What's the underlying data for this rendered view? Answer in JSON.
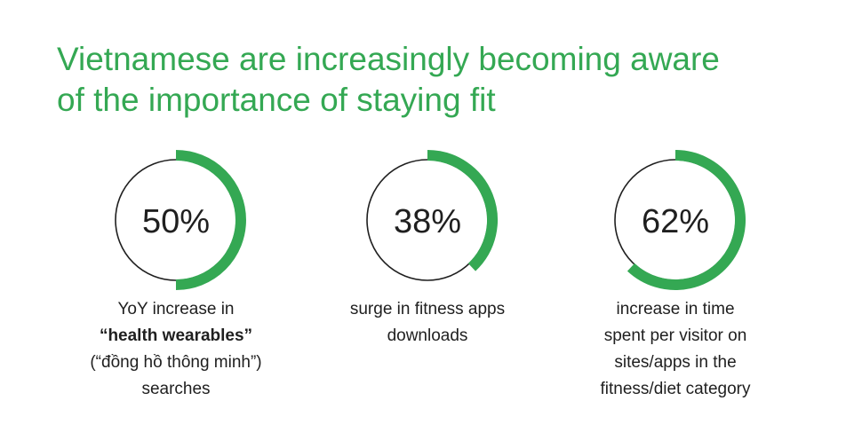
{
  "title": {
    "line1": "Vietnamese are increasingly becoming aware",
    "line2": "of the importance of staying fit"
  },
  "colors": {
    "accent": "#34a853",
    "ring": "#1f1f1f",
    "text": "#1f1f1f"
  },
  "chart_data": {
    "type": "pie",
    "items": [
      {
        "value": 50,
        "label": "50%",
        "caption": [
          "YoY increase in",
          "“health wearables”",
          "(“đồng hồ thông minh”)",
          "searches"
        ]
      },
      {
        "value": 38,
        "label": "38%",
        "caption": [
          "surge in fitness apps",
          "downloads"
        ]
      },
      {
        "value": 62,
        "label": "62%",
        "caption": [
          "increase in time",
          "spent per visitor on",
          "sites/apps in the",
          "fitness/diet category"
        ]
      }
    ]
  }
}
